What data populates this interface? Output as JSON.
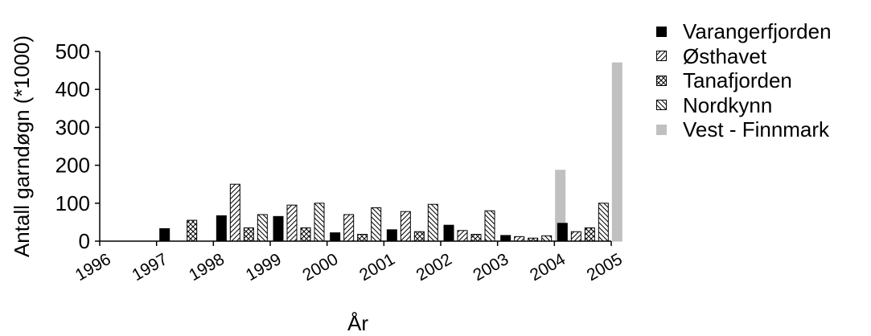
{
  "chart_data": {
    "type": "bar",
    "xlabel": "År",
    "ylabel": "Antall garndøgn (*1000)",
    "ylim": [
      0,
      500
    ],
    "yticks": [
      "0",
      "100",
      "200",
      "300",
      "400",
      "500"
    ],
    "x_tick_labels": [
      "1996",
      "1997",
      "1998",
      "1999",
      "2000",
      "2001",
      "2002",
      "2003",
      "2004",
      "2005"
    ],
    "categories": [
      "1997",
      "1998",
      "1999",
      "2000",
      "2001",
      "2002",
      "2003",
      "2004"
    ],
    "grid": false,
    "legend_position": "right",
    "series": [
      {
        "name": "Varangerfjorden",
        "pattern": "solid-black",
        "values": [
          33,
          67,
          65,
          22,
          30,
          42,
          15,
          47
        ]
      },
      {
        "name": "Østhavet",
        "pattern": "forward-diagonal",
        "values": [
          null,
          150,
          95,
          70,
          78,
          28,
          12,
          25
        ]
      },
      {
        "name": "Tanafjorden",
        "pattern": "cross-hatch",
        "values": [
          55,
          35,
          35,
          18,
          25,
          18,
          8,
          35
        ]
      },
      {
        "name": "Nordkynn",
        "pattern": "backward-diagonal",
        "values": [
          null,
          70,
          100,
          88,
          97,
          80,
          14,
          100
        ]
      },
      {
        "name": "Vest - Finnmark",
        "pattern": "solid-gray",
        "values": [
          null,
          null,
          null,
          null,
          null,
          null,
          187,
          470
        ]
      }
    ]
  }
}
